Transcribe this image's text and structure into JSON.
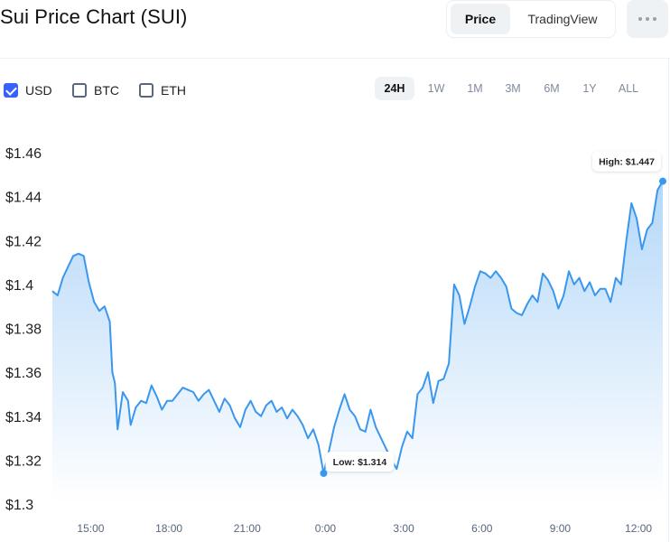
{
  "header": {
    "title": "Sui Price Chart (SUI)",
    "view_options": [
      "Price",
      "TradingView"
    ],
    "active_view": "Price",
    "more_icon": "more-horizontal-icon"
  },
  "currencies": [
    {
      "label": "USD",
      "checked": true
    },
    {
      "label": "BTC",
      "checked": false
    },
    {
      "label": "ETH",
      "checked": false
    }
  ],
  "ranges": [
    "24H",
    "1W",
    "1M",
    "3M",
    "6M",
    "1Y",
    "ALL"
  ],
  "active_range": "24H",
  "colors": {
    "line": "#3a97ee",
    "accent": "#3861fb",
    "fill_top": "#3a97ee"
  },
  "chart_data": {
    "type": "area",
    "title": "",
    "xlabel": "",
    "ylabel": "",
    "ylim": [
      1.3,
      1.46
    ],
    "y_ticks": [
      "$1.46",
      "$1.44",
      "$1.42",
      "$1.4",
      "$1.38",
      "$1.36",
      "$1.34",
      "$1.32",
      "$1.3"
    ],
    "y_tick_values": [
      1.46,
      1.44,
      1.42,
      1.4,
      1.38,
      1.36,
      1.34,
      1.32,
      1.3
    ],
    "x_ticks": [
      "15:00",
      "18:00",
      "21:00",
      "0:00",
      "3:00",
      "6:00",
      "9:00",
      "12:00"
    ],
    "x_tick_values": [
      15,
      18,
      21,
      24,
      27,
      30,
      33,
      36
    ],
    "series": [
      {
        "x": [
          13.5,
          13.7,
          13.9,
          14.1,
          14.3,
          14.5,
          14.7,
          14.9,
          15.1,
          15.3,
          15.5,
          15.7,
          15.8,
          15.9,
          16.0,
          16.2,
          16.4,
          16.5,
          16.7,
          16.9,
          17.1,
          17.3,
          17.5,
          17.7,
          17.9,
          18.1,
          18.3,
          18.5,
          18.7,
          18.9,
          19.1,
          19.3,
          19.5,
          19.7,
          19.9,
          20.1,
          20.3,
          20.5,
          20.7,
          20.9,
          21.1,
          21.3,
          21.5,
          21.7,
          21.9,
          22.1,
          22.3,
          22.5,
          22.7,
          22.9,
          23.1,
          23.3,
          23.5,
          23.7,
          23.9,
          24.1,
          24.3,
          24.5,
          24.7,
          24.9,
          25.1,
          25.3,
          25.5,
          25.7,
          25.9,
          26.1,
          26.3,
          26.5,
          26.7,
          26.9,
          27.1,
          27.3,
          27.5,
          27.7,
          27.9,
          28.1,
          28.3,
          28.5,
          28.7,
          28.9,
          29.1,
          29.3,
          29.5,
          29.7,
          29.9,
          30.1,
          30.3,
          30.5,
          30.7,
          30.9,
          31.1,
          31.3,
          31.5,
          31.7,
          31.9,
          32.1,
          32.3,
          32.5,
          32.7,
          32.9,
          33.1,
          33.3,
          33.5,
          33.7,
          33.9,
          34.1,
          34.3,
          34.5,
          34.7,
          34.9,
          35.1,
          35.3,
          35.5,
          35.7,
          35.9,
          36.1,
          36.3,
          36.5,
          36.7,
          36.9
        ],
        "y": [
          1.397,
          1.395,
          1.403,
          1.408,
          1.413,
          1.414,
          1.413,
          1.401,
          1.392,
          1.388,
          1.39,
          1.383,
          1.36,
          1.355,
          1.334,
          1.351,
          1.347,
          1.336,
          1.344,
          1.347,
          1.346,
          1.354,
          1.349,
          1.343,
          1.347,
          1.347,
          1.35,
          1.353,
          1.352,
          1.351,
          1.347,
          1.35,
          1.352,
          1.347,
          1.342,
          1.348,
          1.345,
          1.339,
          1.335,
          1.343,
          1.347,
          1.342,
          1.34,
          1.345,
          1.347,
          1.342,
          1.344,
          1.339,
          1.343,
          1.34,
          1.336,
          1.33,
          1.334,
          1.327,
          1.314,
          1.324,
          1.335,
          1.343,
          1.35,
          1.343,
          1.34,
          1.334,
          1.333,
          1.343,
          1.335,
          1.33,
          1.325,
          1.32,
          1.316,
          1.326,
          1.333,
          1.33,
          1.35,
          1.353,
          1.36,
          1.346,
          1.356,
          1.357,
          1.364,
          1.4,
          1.395,
          1.382,
          1.39,
          1.399,
          1.406,
          1.405,
          1.403,
          1.406,
          1.403,
          1.399,
          1.389,
          1.387,
          1.386,
          1.391,
          1.395,
          1.392,
          1.405,
          1.402,
          1.397,
          1.389,
          1.395,
          1.406,
          1.4,
          1.403,
          1.397,
          1.401,
          1.395,
          1.398,
          1.398,
          1.392,
          1.403,
          1.4,
          1.42,
          1.437,
          1.43,
          1.416,
          1.425,
          1.428,
          1.443,
          1.447
        ]
      }
    ],
    "annotations": [
      {
        "label": "High: $1.447",
        "x": 36.9,
        "y": 1.447
      },
      {
        "label": "Low: $1.314",
        "x": 23.9,
        "y": 1.314
      }
    ]
  }
}
